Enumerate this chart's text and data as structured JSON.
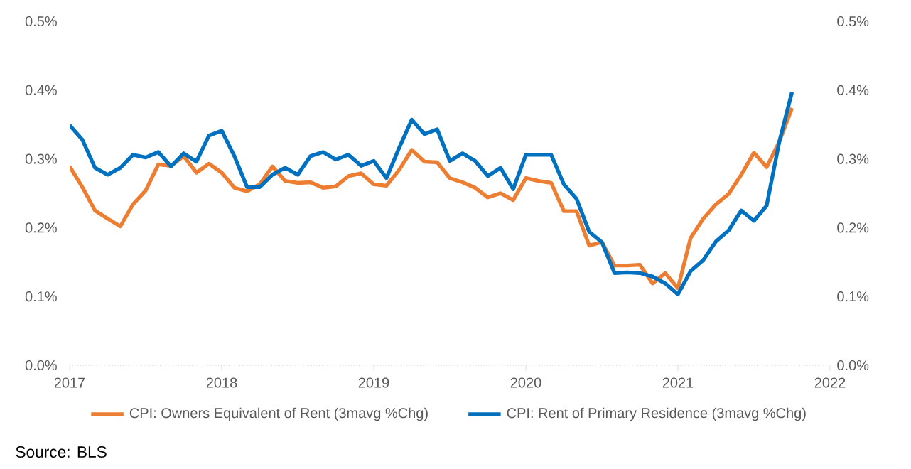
{
  "chart_data": {
    "type": "line",
    "x": [
      "2017-01",
      "2017-02",
      "2017-03",
      "2017-04",
      "2017-05",
      "2017-06",
      "2017-07",
      "2017-08",
      "2017-09",
      "2017-10",
      "2017-11",
      "2017-12",
      "2018-01",
      "2018-02",
      "2018-03",
      "2018-04",
      "2018-05",
      "2018-06",
      "2018-07",
      "2018-08",
      "2018-09",
      "2018-10",
      "2018-11",
      "2018-12",
      "2019-01",
      "2019-02",
      "2019-03",
      "2019-04",
      "2019-05",
      "2019-06",
      "2019-07",
      "2019-08",
      "2019-09",
      "2019-10",
      "2019-11",
      "2019-12",
      "2020-01",
      "2020-02",
      "2020-03",
      "2020-04",
      "2020-05",
      "2020-06",
      "2020-07",
      "2020-08",
      "2020-09",
      "2020-10",
      "2020-11",
      "2020-12",
      "2021-01",
      "2021-02",
      "2021-03",
      "2021-04",
      "2021-05",
      "2021-06",
      "2021-07",
      "2021-08",
      "2021-09",
      "2021-10"
    ],
    "series": [
      {
        "name": "CPI: Owners Equivalent of Rent (3mavg %Chg)",
        "color": "#ed7d31",
        "values": [
          0.289,
          0.259,
          0.225,
          0.213,
          0.202,
          0.234,
          0.254,
          0.292,
          0.29,
          0.304,
          0.28,
          0.293,
          0.28,
          0.258,
          0.253,
          0.263,
          0.289,
          0.268,
          0.265,
          0.266,
          0.258,
          0.26,
          0.275,
          0.279,
          0.263,
          0.261,
          0.284,
          0.313,
          0.296,
          0.295,
          0.272,
          0.266,
          0.258,
          0.244,
          0.25,
          0.24,
          0.272,
          0.268,
          0.265,
          0.224,
          0.224,
          0.174,
          0.179,
          0.145,
          0.145,
          0.146,
          0.119,
          0.134,
          0.112,
          0.185,
          0.213,
          0.234,
          0.249,
          0.277,
          0.309,
          0.288,
          0.325,
          0.374
        ]
      },
      {
        "name": "CPI: Rent of Primary Residence (3mavg %Chg)",
        "color": "#0070c0",
        "values": [
          0.349,
          0.328,
          0.287,
          0.277,
          0.287,
          0.306,
          0.302,
          0.31,
          0.289,
          0.308,
          0.296,
          0.334,
          0.341,
          0.304,
          0.259,
          0.259,
          0.277,
          0.287,
          0.277,
          0.304,
          0.31,
          0.299,
          0.306,
          0.29,
          0.297,
          0.272,
          0.316,
          0.357,
          0.336,
          0.343,
          0.297,
          0.308,
          0.297,
          0.275,
          0.287,
          0.256,
          0.306,
          0.306,
          0.306,
          0.263,
          0.242,
          0.194,
          0.179,
          0.134,
          0.135,
          0.134,
          0.129,
          0.119,
          0.103,
          0.137,
          0.153,
          0.18,
          0.196,
          0.225,
          0.21,
          0.232,
          0.325,
          0.397
        ]
      }
    ],
    "xlim": [
      "2017",
      "2022"
    ],
    "xticks": [
      "2017",
      "2018",
      "2019",
      "2020",
      "2021",
      "2022"
    ],
    "ylim": [
      0,
      0.5
    ],
    "yticks": [
      {
        "value": 0,
        "label": "0.0%"
      },
      {
        "value": 0.1,
        "label": "0.1%"
      },
      {
        "value": 0.2,
        "label": "0.2%"
      },
      {
        "value": 0.3,
        "label": "0.3%"
      },
      {
        "value": 0.4,
        "label": "0.4%"
      },
      {
        "value": 0.5,
        "label": "0.5%"
      }
    ],
    "y2lim": [
      0,
      0.5
    ],
    "y2ticks": [
      {
        "value": 0,
        "label": "0.0%"
      },
      {
        "value": 0.1,
        "label": "0.1%"
      },
      {
        "value": 0.2,
        "label": "0.2%"
      },
      {
        "value": 0.3,
        "label": "0.3%"
      },
      {
        "value": 0.4,
        "label": "0.4%"
      },
      {
        "value": 0.5,
        "label": "0.5%"
      }
    ],
    "legend": "bottom",
    "annotations": [
      "Source: BLS"
    ]
  }
}
